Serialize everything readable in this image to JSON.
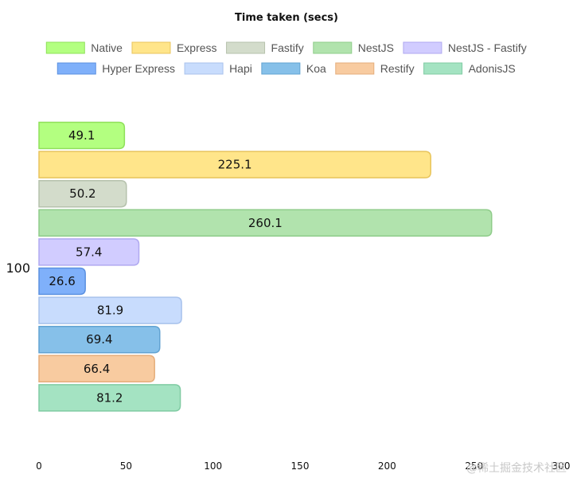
{
  "chart_data": {
    "type": "bar",
    "orientation": "horizontal",
    "title": "Time taken (secs)",
    "categories": [
      "100"
    ],
    "series": [
      {
        "name": "Native",
        "values": [
          49.1
        ],
        "color": "#b3ff80",
        "border": "#8fe05a"
      },
      {
        "name": "Express",
        "values": [
          225.1
        ],
        "color": "#ffe58a",
        "border": "#e8c45c"
      },
      {
        "name": "Fastify",
        "values": [
          50.2
        ],
        "color": "#d3dccb",
        "border": "#b6c2ad"
      },
      {
        "name": "NestJS",
        "values": [
          260.1
        ],
        "color": "#b1e3ad",
        "border": "#8fcc8a"
      },
      {
        "name": "NestJS - Fastify",
        "values": [
          57.4
        ],
        "color": "#d1ccff",
        "border": "#b0a9f0"
      },
      {
        "name": "Hyper Express",
        "values": [
          26.6
        ],
        "color": "#7fb0fa",
        "border": "#5b90e0"
      },
      {
        "name": "Hapi",
        "values": [
          81.9
        ],
        "color": "#c8dcfd",
        "border": "#a8c2ec"
      },
      {
        "name": "Koa",
        "values": [
          69.4
        ],
        "color": "#86c0e9",
        "border": "#62a3d2"
      },
      {
        "name": "Restify",
        "values": [
          66.4
        ],
        "color": "#f8cba0",
        "border": "#e5ad7b"
      },
      {
        "name": "AdonisJS",
        "values": [
          81.2
        ],
        "color": "#a4e3c2",
        "border": "#80cba3"
      }
    ],
    "x_ticks": [
      0,
      50,
      100,
      150,
      200,
      250,
      300
    ],
    "xlim": [
      0,
      300
    ],
    "grid": false,
    "legend_position": "top"
  },
  "watermark": "@稀土掘金技术社区"
}
